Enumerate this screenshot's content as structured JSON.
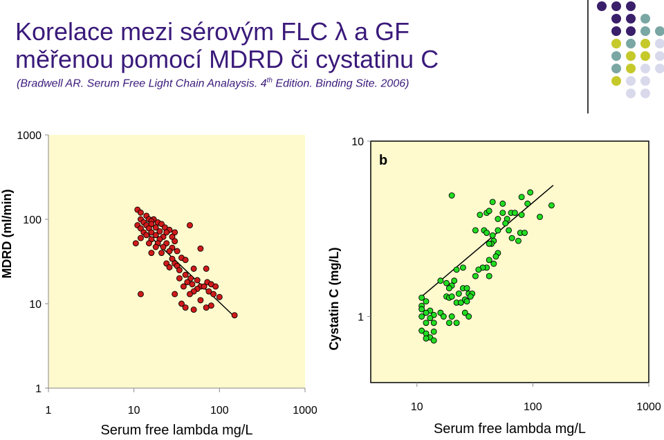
{
  "slide": {
    "title_line1": "Korelace mezi sérovým FLC λ a GF",
    "title_line2": "měřenou pomocí MDRD či cystatinu C",
    "citation_pre": "(Bradwell AR. Serum Free Light Chain Analaysis. 4",
    "citation_sup": "th",
    "citation_post": " Edition. Binding Site. 2006)"
  },
  "theme": {
    "title_color": "#3a1a7a",
    "plot_bg": "#fefacd",
    "dot_colors": [
      "#3a1f6b",
      "#7aa6a3",
      "#c5c92a",
      "#d9d9ec"
    ]
  },
  "chart_data": [
    {
      "type": "scatter",
      "log_x": true,
      "log_y": true,
      "xlim": [
        1,
        1000
      ],
      "ylim": [
        1,
        1000
      ],
      "x_ticks": [
        "1",
        "10",
        "100",
        "1000"
      ],
      "y_ticks": [
        "1",
        "10",
        "100",
        "1000"
      ],
      "xlabel": "Serum free lambda mg/L",
      "ylabel": "MDRD (ml/min)",
      "marker_color": "#d01a1a",
      "trend_line": {
        "from": [
          12,
          80
        ],
        "to": [
          140,
          7.5
        ]
      },
      "points": [
        [
          11,
          130
        ],
        [
          12,
          120
        ],
        [
          14,
          110
        ],
        [
          12,
          100
        ],
        [
          15,
          100
        ],
        [
          17,
          100
        ],
        [
          13,
          92
        ],
        [
          16,
          95
        ],
        [
          19,
          92
        ],
        [
          11,
          85
        ],
        [
          14,
          85
        ],
        [
          16,
          88
        ],
        [
          21,
          88
        ],
        [
          12,
          78
        ],
        [
          15,
          78
        ],
        [
          18,
          80
        ],
        [
          23,
          80
        ],
        [
          26,
          75
        ],
        [
          13,
          70
        ],
        [
          16,
          70
        ],
        [
          20,
          72
        ],
        [
          24,
          70
        ],
        [
          30,
          70
        ],
        [
          45,
          85
        ],
        [
          14,
          65
        ],
        [
          18,
          65
        ],
        [
          22,
          62
        ],
        [
          28,
          62
        ],
        [
          12,
          60
        ],
        [
          16,
          58
        ],
        [
          20,
          58
        ],
        [
          10.5,
          52
        ],
        [
          15,
          52
        ],
        [
          19,
          52
        ],
        [
          24,
          52
        ],
        [
          30,
          55
        ],
        [
          18,
          47
        ],
        [
          22,
          47
        ],
        [
          28,
          46
        ],
        [
          26,
          42
        ],
        [
          32,
          42
        ],
        [
          60,
          45
        ],
        [
          16,
          40
        ],
        [
          21,
          40
        ],
        [
          36,
          35
        ],
        [
          28,
          34
        ],
        [
          40,
          33
        ],
        [
          24,
          30
        ],
        [
          30,
          30
        ],
        [
          32,
          28
        ],
        [
          26,
          27
        ],
        [
          34,
          25
        ],
        [
          50,
          26
        ],
        [
          70,
          26
        ],
        [
          40,
          22
        ],
        [
          34,
          20
        ],
        [
          46,
          20
        ],
        [
          55,
          19
        ],
        [
          42,
          18
        ],
        [
          48,
          17
        ],
        [
          60,
          16
        ],
        [
          72,
          18
        ],
        [
          80,
          17
        ],
        [
          38,
          16
        ],
        [
          55,
          15
        ],
        [
          66,
          16
        ],
        [
          90,
          16
        ],
        [
          50,
          14
        ],
        [
          75,
          14
        ],
        [
          12,
          13
        ],
        [
          30,
          13
        ],
        [
          45,
          13
        ],
        [
          85,
          13
        ],
        [
          100,
          12
        ],
        [
          60,
          11
        ],
        [
          36,
          10
        ],
        [
          80,
          9.5
        ],
        [
          40,
          9
        ],
        [
          70,
          9
        ],
        [
          50,
          8.5
        ],
        [
          150,
          7.3
        ]
      ]
    },
    {
      "type": "scatter",
      "panel_label": "b",
      "log_x": true,
      "log_y": true,
      "xlim": [
        4,
        1000
      ],
      "ylim": [
        0.42,
        10
      ],
      "x_ticks": [
        "10",
        "100",
        "1000"
      ],
      "y_ticks": [
        "1",
        "10"
      ],
      "xlabel": "Serum free lambda mg/L",
      "ylabel": "Cystatin C (mg/L)",
      "marker_color": "#22dd22",
      "trend_line": {
        "from": [
          11,
          1.3
        ],
        "to": [
          150,
          5.6
        ]
      },
      "points": [
        [
          20,
          4.9
        ],
        [
          45,
          4.5
        ],
        [
          55,
          4.4
        ],
        [
          80,
          4.8
        ],
        [
          95,
          5.1
        ],
        [
          90,
          4.4
        ],
        [
          145,
          4.3
        ],
        [
          35,
          3.8
        ],
        [
          40,
          3.9
        ],
        [
          42,
          4.0
        ],
        [
          55,
          3.9
        ],
        [
          60,
          3.6
        ],
        [
          65,
          3.9
        ],
        [
          70,
          3.9
        ],
        [
          80,
          3.8
        ],
        [
          50,
          3.6
        ],
        [
          58,
          3.4
        ],
        [
          115,
          3.7
        ],
        [
          32,
          3.1
        ],
        [
          38,
          3.1
        ],
        [
          40,
          3.0
        ],
        [
          50,
          3.1
        ],
        [
          62,
          3.1
        ],
        [
          78,
          3.0
        ],
        [
          85,
          3.0
        ],
        [
          45,
          2.9
        ],
        [
          46,
          2.7
        ],
        [
          44,
          2.6
        ],
        [
          42,
          2.6
        ],
        [
          66,
          2.8
        ],
        [
          75,
          2.7
        ],
        [
          50,
          2.3
        ],
        [
          48,
          2.2
        ],
        [
          42,
          2.1
        ],
        [
          40,
          1.9
        ],
        [
          37,
          1.9
        ],
        [
          34,
          1.85
        ],
        [
          46,
          2.0
        ],
        [
          32,
          1.7
        ],
        [
          42,
          1.7
        ],
        [
          25,
          1.9
        ],
        [
          22,
          1.85
        ],
        [
          16,
          1.6
        ],
        [
          18,
          1.55
        ],
        [
          20,
          1.5
        ],
        [
          21,
          1.6
        ],
        [
          19,
          1.45
        ],
        [
          25,
          1.45
        ],
        [
          27,
          1.45
        ],
        [
          28,
          1.35
        ],
        [
          30,
          1.35
        ],
        [
          23,
          1.35
        ],
        [
          18,
          1.3
        ],
        [
          19,
          1.28
        ],
        [
          20,
          1.3
        ],
        [
          22,
          1.2
        ],
        [
          24,
          1.2
        ],
        [
          26,
          1.25
        ],
        [
          27,
          1.22
        ],
        [
          29,
          1.3
        ],
        [
          11,
          1.28
        ],
        [
          12,
          1.22
        ],
        [
          11,
          1.15
        ],
        [
          11,
          1.1
        ],
        [
          13,
          1.08
        ],
        [
          12,
          1.05
        ],
        [
          14,
          1.02
        ],
        [
          16,
          1.05
        ],
        [
          17,
          1.0
        ],
        [
          20,
          1.0
        ],
        [
          11,
          1.0
        ],
        [
          13,
          0.98
        ],
        [
          12,
          0.92
        ],
        [
          14,
          0.92
        ],
        [
          19,
          0.92
        ],
        [
          22,
          0.92
        ],
        [
          26,
          1.05
        ],
        [
          28,
          1.0
        ],
        [
          11,
          0.83
        ],
        [
          12,
          0.8
        ],
        [
          14,
          0.82
        ],
        [
          13,
          0.76
        ],
        [
          14,
          0.73
        ],
        [
          12,
          0.75
        ]
      ]
    }
  ]
}
